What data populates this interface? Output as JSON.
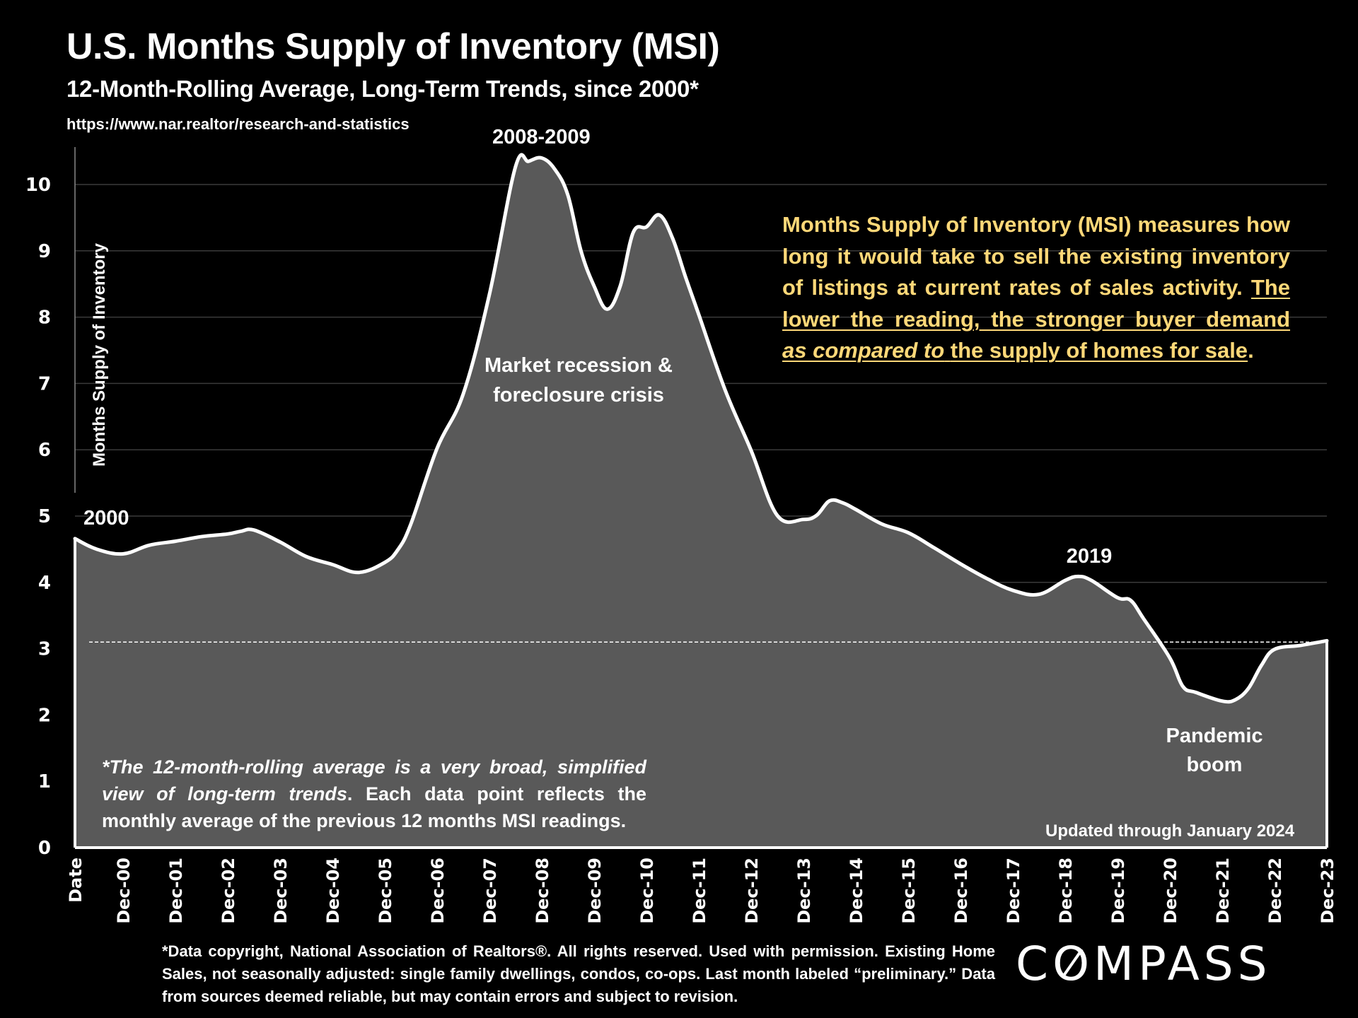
{
  "header": {
    "title": "U.S. Months Supply of Inventory (MSI)",
    "subtitle": "12-Month-Rolling Average, Long-Term Trends, since 2000*",
    "source_url": "https://www.nar.realtor/research-and-statistics"
  },
  "notes": {
    "msi_definition_plain": "Months Supply of Inventory (MSI) measures how long it would take to sell the existing inventory of listings at current rates of sales activity.",
    "msi_definition_underlined_1": "The lower the reading, the stronger buyer demand",
    "msi_definition_italic": "as compared to",
    "msi_definition_underlined_2": "the supply of homes for sale",
    "msi_definition_end": ".",
    "rolling_italic": "*The 12-month-rolling average is a very broad, simplified view of long-term trends",
    "rolling_plain": ". Each data point reflects the monthly average of the previous 12 months MSI readings.",
    "updated": "Updated through January 2024",
    "footer": "*Data copyright, National Association of Realtors®. All rights reserved. Used with permission. Existing Home Sales, not seasonally adjusted:  single family dwellings, condos, co-ops. Last month labeled “preliminary.” Data from sources deemed reliable, but may contain errors and subject to revision."
  },
  "branding": {
    "logo_text_pre": "C",
    "logo_text_o": "O",
    "logo_text_post": "MPASS"
  },
  "colors": {
    "background": "#000000",
    "area_fill": "#595959",
    "line": "#ffffff",
    "note_text": "#FFD878",
    "gridline": "#3a3a3a"
  },
  "chart_data": {
    "type": "area",
    "title": "U.S. Months Supply of Inventory (MSI)",
    "subtitle": "12-Month-Rolling Average, Long-Term Trends, since 2000*",
    "xlabel": "Date",
    "ylabel": "Months Supply of Inventory",
    "ylim": [
      0,
      10.6
    ],
    "yticks": [
      0,
      1,
      2,
      3,
      4,
      5,
      6,
      7,
      8,
      9,
      10
    ],
    "xtick_labels": [
      "Date",
      "Dec-00",
      "Dec-01",
      "Dec-02",
      "Dec-03",
      "Dec-04",
      "Dec-05",
      "Dec-06",
      "Dec-07",
      "Dec-08",
      "Dec-09",
      "Dec-10",
      "Dec-11",
      "Dec-12",
      "Dec-13",
      "Dec-14",
      "Dec-15",
      "Dec-16",
      "Dec-17",
      "Dec-18",
      "Dec-19",
      "Dec-20",
      "Dec-21",
      "Dec-22",
      "Dec-23"
    ],
    "grid": true,
    "reference_line": {
      "value": 3.1,
      "style": "dashed"
    },
    "series": [
      {
        "name": "MSI 12-month rolling average",
        "x": [
          "Jan-00",
          "Jun-00",
          "Dec-00",
          "Jun-01",
          "Dec-01",
          "Jun-02",
          "Dec-02",
          "Mar-03",
          "Jun-03",
          "Dec-03",
          "Jun-04",
          "Dec-04",
          "Jun-05",
          "Dec-05",
          "Mar-06",
          "Jun-06",
          "Dec-06",
          "Jun-07",
          "Dec-07",
          "Jun-08",
          "Sep-08",
          "Dec-08",
          "Mar-09",
          "Jun-09",
          "Sep-09",
          "Dec-09",
          "Mar-10",
          "Jun-10",
          "Sep-10",
          "Dec-10",
          "Mar-11",
          "Jun-11",
          "Sep-11",
          "Dec-11",
          "Jun-12",
          "Dec-12",
          "Jun-13",
          "Dec-13",
          "Mar-14",
          "Jun-14",
          "Sep-14",
          "Dec-14",
          "Jun-15",
          "Dec-15",
          "Jun-16",
          "Dec-16",
          "Jun-17",
          "Dec-17",
          "Jun-18",
          "Dec-18",
          "Mar-19",
          "Jun-19",
          "Dec-19",
          "Mar-20",
          "Jun-20",
          "Dec-20",
          "Mar-21",
          "Jun-21",
          "Dec-21",
          "Mar-22",
          "Jun-22",
          "Sep-22",
          "Dec-22",
          "Jun-23",
          "Dec-23"
        ],
        "month_index": [
          0,
          5,
          11,
          17,
          23,
          29,
          35,
          38,
          41,
          47,
          53,
          59,
          65,
          71,
          74,
          77,
          83,
          89,
          95,
          101,
          104,
          107,
          110,
          113,
          116,
          119,
          122,
          125,
          128,
          131,
          134,
          137,
          140,
          143,
          149,
          155,
          161,
          167,
          170,
          173,
          176,
          179,
          185,
          191,
          197,
          203,
          209,
          215,
          221,
          227,
          230,
          233,
          239,
          242,
          245,
          251,
          254,
          257,
          263,
          266,
          269,
          272,
          275,
          281,
          287
        ],
        "values": [
          4.66,
          4.5,
          4.43,
          4.56,
          4.62,
          4.69,
          4.73,
          4.77,
          4.79,
          4.61,
          4.39,
          4.27,
          4.15,
          4.3,
          4.49,
          4.88,
          6.02,
          6.84,
          8.34,
          10.27,
          10.35,
          10.4,
          10.23,
          9.84,
          9.0,
          8.47,
          8.12,
          8.47,
          9.28,
          9.36,
          9.54,
          9.19,
          8.6,
          8.04,
          6.91,
          5.99,
          5.01,
          4.95,
          5.01,
          5.23,
          5.2,
          5.1,
          4.88,
          4.75,
          4.52,
          4.28,
          4.06,
          3.88,
          3.82,
          4.03,
          4.09,
          4.03,
          3.77,
          3.73,
          3.45,
          2.86,
          2.43,
          2.34,
          2.21,
          2.23,
          2.4,
          2.75,
          2.99,
          3.05,
          3.12
        ]
      }
    ],
    "annotations": [
      {
        "text": "2000",
        "near": "Jan-00"
      },
      {
        "text": "2008-2009",
        "near": "Dec-08"
      },
      {
        "text": "Market recession &",
        "near": "Dec-08"
      },
      {
        "text": "foreclosure crisis",
        "near": "Dec-08"
      },
      {
        "text": "2019",
        "near": "Mar-19"
      },
      {
        "text": "Pandemic",
        "near": "Dec-21"
      },
      {
        "text": "boom",
        "near": "Dec-21"
      }
    ]
  }
}
